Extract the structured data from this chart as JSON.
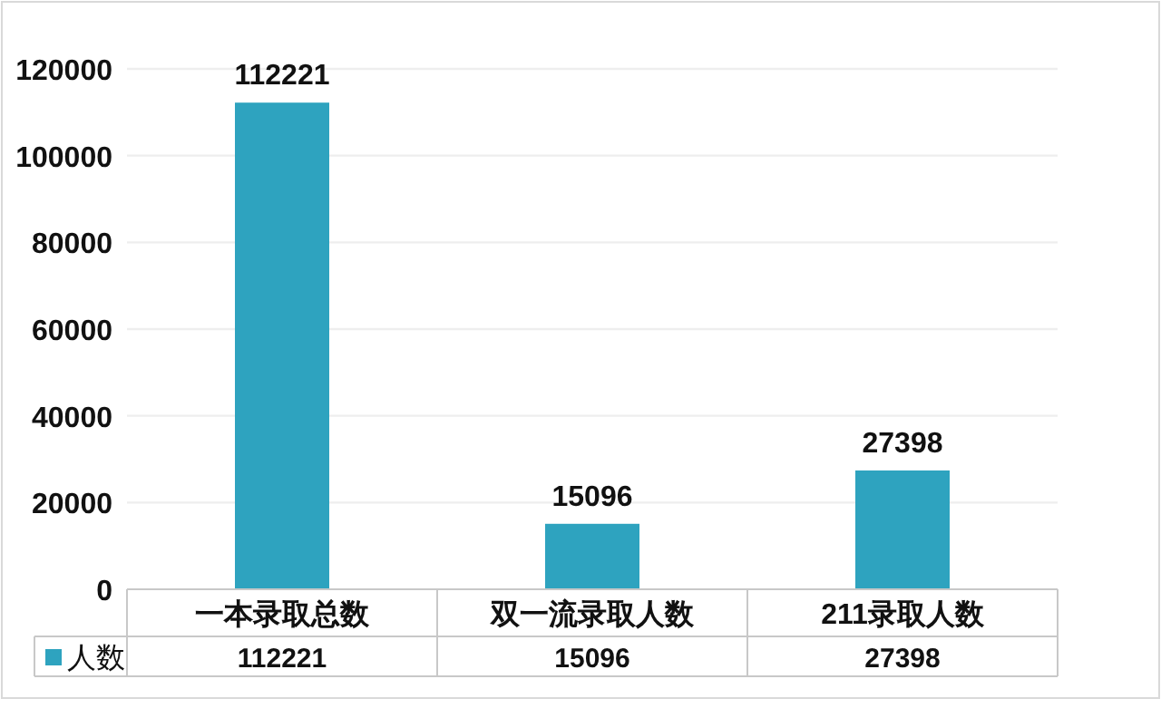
{
  "chart_data": {
    "type": "bar",
    "categories": [
      "一本录取总数",
      "双一流录取人数",
      "211录取人数"
    ],
    "series": [
      {
        "name": "人数",
        "color": "#2ea3bf",
        "values": [
          112221,
          15096,
          27398
        ]
      }
    ],
    "annotations": [
      "112221",
      "15096",
      "27398"
    ],
    "ylim": [
      0,
      120000
    ],
    "yticks": [
      0,
      20000,
      40000,
      60000,
      80000,
      100000,
      120000
    ],
    "grid": "y",
    "data_labels": true,
    "legend": "bottom left"
  }
}
